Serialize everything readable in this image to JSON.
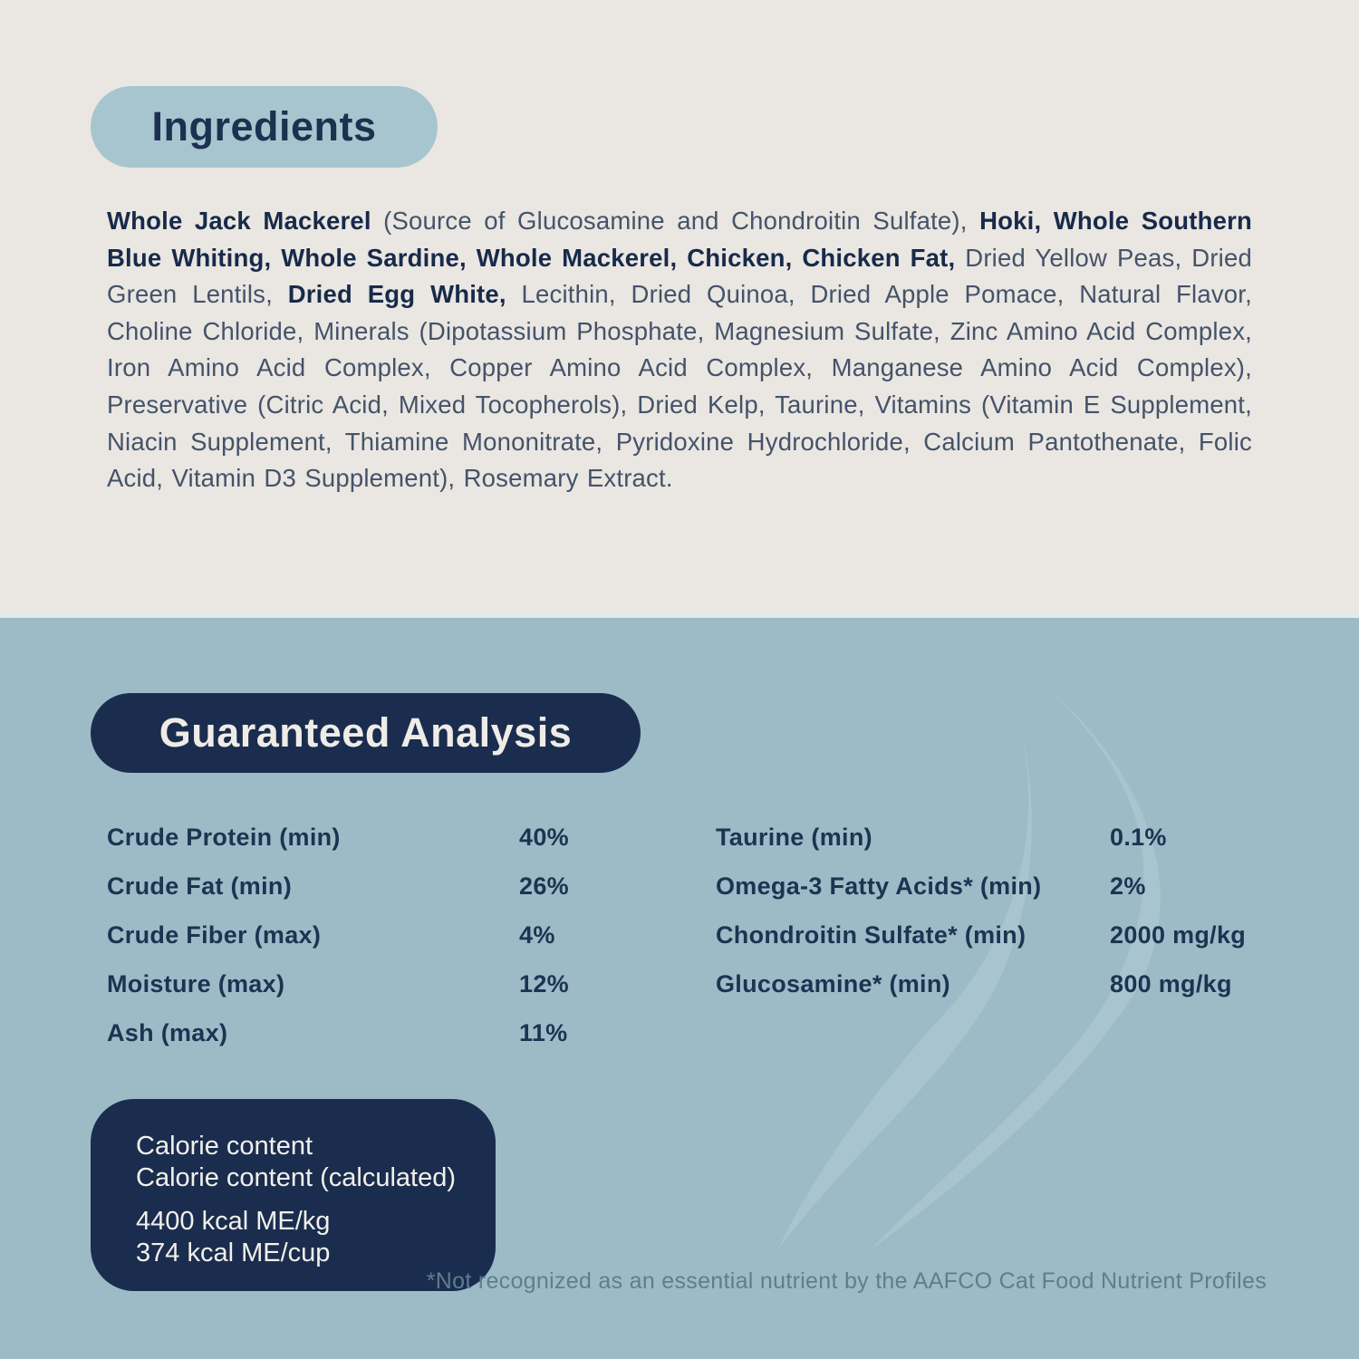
{
  "colors": {
    "top_background": "#EAE6E1",
    "bottom_background": "#9CBBC7",
    "ingredients_pill": "#A7C5CF",
    "navy": "#1B2D4E",
    "body_text": "#44536A",
    "bold_text": "#172A4A",
    "footnote_text": "#607D8B",
    "watermark": "#D7E2E6"
  },
  "ingredients": {
    "title": "Ingredients",
    "segments": [
      {
        "bold": true,
        "text": "Whole Jack Mackerel"
      },
      {
        "bold": false,
        "text": " (Source of Glucosamine and Chondroitin Sulfate), "
      },
      {
        "bold": true,
        "text": "Hoki, Whole Southern Blue Whiting, Whole Sardine, Whole Mackerel, Chicken, Chicken Fat,"
      },
      {
        "bold": false,
        "text": " Dried Yellow Peas, Dried Green Lentils, "
      },
      {
        "bold": true,
        "text": "Dried Egg White,"
      },
      {
        "bold": false,
        "text": " Lecithin, Dried Quinoa, Dried Apple Pomace, Natural Flavor, Choline Chloride, Minerals (Dipotassium Phosphate, Magnesium Sulfate, Zinc Amino Acid Complex, Iron Amino Acid Complex, Copper Amino Acid Complex, Manganese Amino Acid Complex), Preservative (Citric Acid, Mixed Tocopherols), Dried Kelp, Taurine, Vitamins (Vitamin E Supplement, Niacin Supplement, Thiamine Mononitrate, Pyridoxine Hydrochloride, Calcium Pantothenate, Folic Acid, Vitamin D3 Supplement), Rosemary Extract."
      }
    ]
  },
  "guaranteed_analysis": {
    "title": "Guaranteed Analysis",
    "left_rows": [
      {
        "label": "Crude Protein (min)",
        "value": "40%"
      },
      {
        "label": "Crude Fat (min)",
        "value": "26%"
      },
      {
        "label": "Crude Fiber (max)",
        "value": "4%"
      },
      {
        "label": "Moisture (max)",
        "value": "12%"
      },
      {
        "label": "Ash (max)",
        "value": "11%"
      }
    ],
    "right_rows": [
      {
        "label": "Taurine (min)",
        "value": "0.1%"
      },
      {
        "label": "Omega-3 Fatty Acids* (min)",
        "value": "2%"
      },
      {
        "label": "Chondroitin Sulfate* (min)",
        "value": "2000 mg/kg"
      },
      {
        "label": "Glucosamine* (min)",
        "value": "800 mg/kg"
      }
    ],
    "calorie_box": {
      "header_lines": [
        "Calorie content",
        "Calorie content (calculated)"
      ],
      "value_lines": [
        "4400 kcal ME/kg",
        "374 kcal ME/cup"
      ]
    },
    "footnote": "*Not recognized as an essential nutrient by the AAFCO Cat Food Nutrient Profiles"
  }
}
